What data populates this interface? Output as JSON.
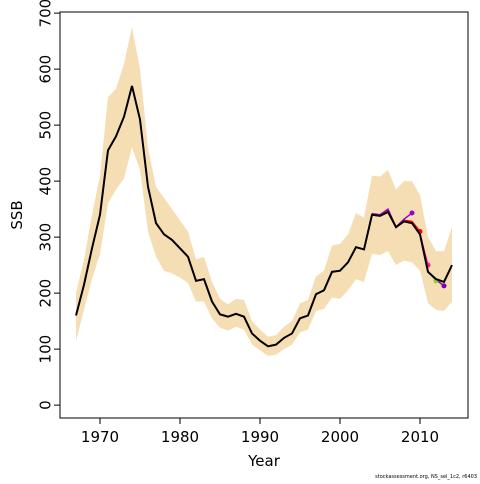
{
  "chart_data": {
    "type": "line",
    "ylabel": "SSB",
    "xlabel": "Year",
    "note": "stockassessment.org, NS_sel_1c2, r6403",
    "x": [
      1967,
      1968,
      1969,
      1970,
      1971,
      1972,
      1973,
      1974,
      1975,
      1976,
      1977,
      1978,
      1979,
      1980,
      1981,
      1982,
      1983,
      1984,
      1985,
      1986,
      1987,
      1988,
      1989,
      1990,
      1991,
      1992,
      1993,
      1994,
      1995,
      1996,
      1997,
      1998,
      1999,
      2000,
      2001,
      2002,
      2003,
      2004,
      2005,
      2006,
      2007,
      2008,
      2009,
      2010,
      2011,
      2012,
      2013,
      2014
    ],
    "band": {
      "color": "#f5deb3",
      "upper": [
        200,
        260,
        340,
        410,
        550,
        565,
        610,
        675,
        600,
        460,
        390,
        370,
        350,
        330,
        310,
        260,
        265,
        220,
        190,
        180,
        190,
        188,
        150,
        135,
        122,
        125,
        140,
        150,
        182,
        188,
        230,
        240,
        285,
        288,
        305,
        343,
        335,
        410,
        408,
        420,
        385,
        400,
        400,
        375,
        300,
        275,
        275,
        318
      ],
      "lower": [
        115,
        170,
        225,
        270,
        360,
        385,
        405,
        460,
        420,
        310,
        265,
        240,
        235,
        228,
        218,
        185,
        185,
        155,
        138,
        133,
        140,
        135,
        108,
        98,
        88,
        90,
        100,
        108,
        130,
        135,
        168,
        172,
        192,
        190,
        205,
        225,
        220,
        270,
        268,
        275,
        250,
        258,
        255,
        240,
        182,
        170,
        168,
        185
      ]
    },
    "series": [
      {
        "color": "#000000",
        "values": [
          160,
          215,
          280,
          340,
          455,
          480,
          515,
          570,
          510,
          390,
          325,
          305,
          295,
          280,
          265,
          222,
          225,
          185,
          162,
          158,
          163,
          158,
          128,
          115,
          105,
          108,
          120,
          128,
          155,
          160,
          198,
          205,
          238,
          240,
          255,
          282,
          278,
          340,
          338,
          345,
          318,
          328,
          325,
          305,
          238,
          225,
          220,
          250
        ]
      },
      {
        "color": "#9900cc",
        "x": [
          2004,
          2005,
          2006,
          2007,
          2008,
          2009
        ],
        "values": [
          342,
          340,
          350,
          318,
          332,
          343
        ]
      },
      {
        "color": "#ff0000",
        "x": [
          2004,
          2005,
          2006,
          2007,
          2008,
          2009,
          2010
        ],
        "values": [
          340,
          338,
          347,
          317,
          330,
          328,
          310
        ]
      },
      {
        "color": "#ff1493",
        "x": [
          2004,
          2005,
          2006,
          2007,
          2008,
          2009,
          2010,
          2011
        ],
        "values": [
          340,
          338,
          345,
          318,
          328,
          326,
          305,
          250
        ]
      },
      {
        "color": "#99cc33",
        "x": [
          2004,
          2005,
          2006,
          2007,
          2008,
          2009,
          2010,
          2011,
          2012
        ],
        "values": [
          340,
          338,
          345,
          318,
          328,
          325,
          305,
          238,
          222
        ]
      },
      {
        "color": "#7b00b4",
        "x": [
          2004,
          2005,
          2006,
          2007,
          2008,
          2009,
          2010,
          2011,
          2012,
          2013
        ],
        "values": [
          340,
          338,
          345,
          318,
          328,
          325,
          305,
          238,
          224,
          213
        ]
      }
    ],
    "xlim": [
      1965,
      2016
    ],
    "ylim": [
      -23,
      702
    ],
    "xticks": [
      1970,
      1980,
      1990,
      2000,
      2010
    ],
    "yticks": [
      0,
      100,
      200,
      300,
      400,
      500,
      600,
      700
    ]
  }
}
